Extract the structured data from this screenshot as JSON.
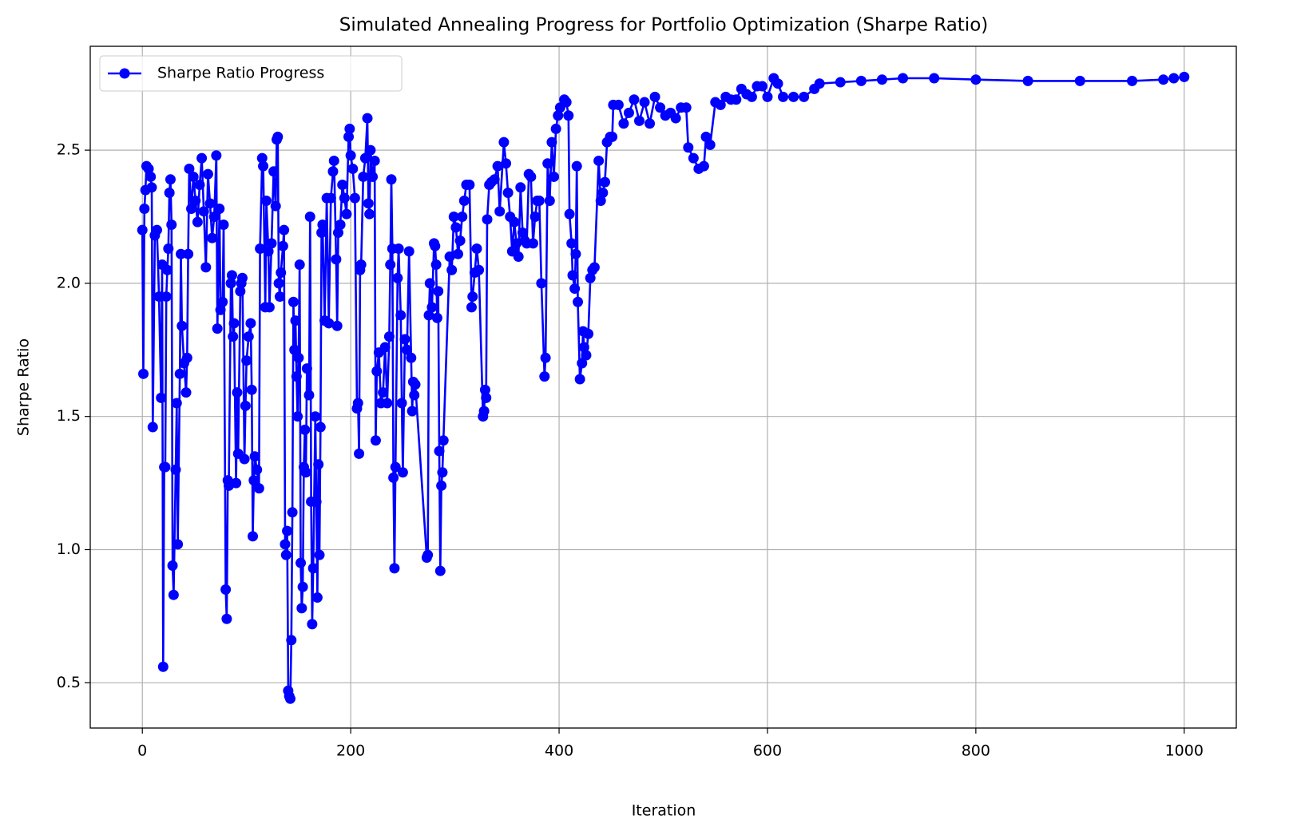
{
  "chart_data": {
    "type": "line",
    "title": "Simulated Annealing Progress for Portfolio Optimization (Sharpe Ratio)",
    "xlabel": "Iteration",
    "ylabel": "Sharpe Ratio",
    "series": [
      {
        "name": "Sharpe Ratio Progress",
        "color": "#0000ff",
        "x": [
          0,
          1,
          2,
          3,
          4,
          6,
          8,
          9,
          10,
          12,
          14,
          16,
          18,
          19,
          20,
          21,
          22,
          23,
          24,
          25,
          26,
          27,
          28,
          29,
          30,
          32,
          33,
          34,
          36,
          37,
          38,
          40,
          42,
          43,
          44,
          45,
          47,
          49,
          51,
          53,
          55,
          57,
          59,
          61,
          63,
          65,
          67,
          69,
          71,
          72,
          74,
          75,
          77,
          78,
          80,
          81,
          82,
          83,
          85,
          86,
          87,
          88,
          90,
          91,
          92,
          94,
          95,
          96,
          98,
          99,
          100,
          102,
          104,
          105,
          106,
          107,
          108,
          110,
          112,
          113,
          115,
          116,
          118,
          119,
          121,
          122,
          124,
          126,
          128,
          129,
          130,
          131,
          132,
          133,
          135,
          136,
          137,
          138,
          139,
          140,
          141,
          142,
          143,
          144,
          145,
          146,
          147,
          148,
          149,
          150,
          151,
          152,
          153,
          154,
          155,
          156,
          157,
          158,
          160,
          161,
          162,
          163,
          164,
          166,
          167,
          168,
          169,
          170,
          171,
          172,
          173,
          175,
          177,
          179,
          181,
          183,
          184,
          186,
          187,
          188,
          190,
          192,
          194,
          196,
          198,
          199,
          200,
          202,
          204,
          206,
          207,
          208,
          209,
          210,
          212,
          214,
          216,
          217,
          218,
          219,
          221,
          223,
          224,
          225,
          227,
          229,
          231,
          233,
          235,
          237,
          238,
          239,
          240,
          241,
          242,
          243,
          245,
          246,
          248,
          249,
          250,
          252,
          254,
          256,
          258,
          259,
          260,
          261,
          262,
          273,
          274,
          275,
          276,
          278,
          280,
          281,
          282,
          283,
          284,
          285,
          286,
          287,
          288,
          289,
          295,
          297,
          299,
          301,
          303,
          305,
          307,
          309,
          311,
          314,
          316,
          317,
          319,
          321,
          323,
          327,
          328,
          329,
          330,
          331,
          333,
          335,
          338,
          341,
          343,
          347,
          349,
          351,
          353,
          355,
          357,
          359,
          361,
          363,
          365,
          367,
          369,
          371,
          373,
          375,
          377,
          379,
          381,
          383,
          386,
          387,
          389,
          391,
          393,
          395,
          397,
          399,
          401,
          405,
          407,
          409,
          410,
          412,
          413,
          415,
          416,
          417,
          418,
          420,
          422,
          423,
          424,
          426,
          428,
          430,
          432,
          434,
          438,
          440,
          442,
          444,
          446,
          449,
          451,
          452,
          457,
          462,
          467,
          472,
          477,
          482,
          487,
          492,
          497,
          502,
          507,
          512,
          517,
          522,
          524,
          529,
          534,
          539,
          541,
          545,
          550,
          555,
          560,
          565,
          570,
          575,
          580,
          585,
          590,
          595,
          600,
          606,
          610,
          615,
          625,
          635,
          645,
          650,
          670,
          690,
          710,
          730,
          760,
          800,
          850,
          900,
          950,
          980,
          990,
          1000
        ],
        "values": [
          2.2,
          1.66,
          2.28,
          2.35,
          2.44,
          2.43,
          2.4,
          2.36,
          1.46,
          2.18,
          2.2,
          1.95,
          1.57,
          2.07,
          0.56,
          1.31,
          1.31,
          1.95,
          2.05,
          2.13,
          2.34,
          2.39,
          2.22,
          0.94,
          0.83,
          1.3,
          1.55,
          1.02,
          1.66,
          2.11,
          1.84,
          1.7,
          1.59,
          1.72,
          2.11,
          2.43,
          2.28,
          2.4,
          2.31,
          2.23,
          2.37,
          2.47,
          2.27,
          2.06,
          2.41,
          2.3,
          2.17,
          2.25,
          2.48,
          1.83,
          2.28,
          1.9,
          1.93,
          2.22,
          0.85,
          0.74,
          1.26,
          1.24,
          2.0,
          2.03,
          1.8,
          1.85,
          1.25,
          1.59,
          1.36,
          1.97,
          2.0,
          2.02,
          1.34,
          1.54,
          1.71,
          1.8,
          1.85,
          1.6,
          1.05,
          1.26,
          1.35,
          1.3,
          1.23,
          2.13,
          2.47,
          2.44,
          1.91,
          2.31,
          2.12,
          1.91,
          2.15,
          2.42,
          2.29,
          2.54,
          2.55,
          2.0,
          1.95,
          2.04,
          2.14,
          2.2,
          1.02,
          0.98,
          1.07,
          0.47,
          0.45,
          0.44,
          0.66,
          1.14,
          1.93,
          1.75,
          1.86,
          1.65,
          1.5,
          1.72,
          2.07,
          0.95,
          0.78,
          0.86,
          1.31,
          1.45,
          1.29,
          1.68,
          1.58,
          2.25,
          1.18,
          0.72,
          0.93,
          1.5,
          1.18,
          0.82,
          1.32,
          0.98,
          1.46,
          2.19,
          2.22,
          1.86,
          2.32,
          1.85,
          2.32,
          2.42,
          2.46,
          2.09,
          1.84,
          2.19,
          2.22,
          2.37,
          2.32,
          2.26,
          2.55,
          2.58,
          2.48,
          2.43,
          2.32,
          1.53,
          1.55,
          1.36,
          2.05,
          2.07,
          2.4,
          2.47,
          2.62,
          2.3,
          2.26,
          2.5,
          2.4,
          2.46,
          1.41,
          1.67,
          1.74,
          1.55,
          1.59,
          1.76,
          1.55,
          1.8,
          2.07,
          2.39,
          2.13,
          1.27,
          0.93,
          1.31,
          2.02,
          2.13,
          1.88,
          1.55,
          1.29,
          1.79,
          1.75,
          2.12,
          1.72,
          1.52,
          1.63,
          1.58,
          1.62,
          0.97,
          0.98,
          1.88,
          2.0,
          1.91,
          2.15,
          2.14,
          2.07,
          1.87,
          1.97,
          1.37,
          0.92,
          1.24,
          1.29,
          1.41,
          2.1,
          2.05,
          2.25,
          2.21,
          2.11,
          2.16,
          2.25,
          2.31,
          2.37,
          2.37,
          1.91,
          1.95,
          2.04,
          2.13,
          2.05,
          1.5,
          1.52,
          1.6,
          1.57,
          2.24,
          2.37,
          2.38,
          2.39,
          2.44,
          2.27,
          2.53,
          2.45,
          2.34,
          2.25,
          2.12,
          2.23,
          2.15,
          2.1,
          2.36,
          2.19,
          2.16,
          2.15,
          2.41,
          2.4,
          2.15,
          2.25,
          2.31,
          2.31,
          2.0,
          1.65,
          1.72,
          2.45,
          2.31,
          2.53,
          2.4,
          2.58,
          2.63,
          2.66,
          2.69,
          2.68,
          2.63,
          2.26,
          2.15,
          2.03,
          1.98,
          2.11,
          2.44,
          1.93,
          1.64,
          1.7,
          1.82,
          1.76,
          1.73,
          1.81,
          2.02,
          2.05,
          2.06,
          2.46,
          2.31,
          2.34,
          2.38,
          2.53,
          2.55,
          2.55,
          2.67,
          2.67,
          2.6,
          2.64,
          2.69,
          2.61,
          2.68,
          2.6,
          2.7,
          2.66,
          2.63,
          2.64,
          2.62,
          2.66,
          2.66,
          2.51,
          2.47,
          2.43,
          2.44,
          2.55,
          2.52,
          2.68,
          2.67,
          2.7,
          2.69,
          2.69,
          2.73,
          2.71,
          2.7,
          2.74,
          2.74,
          2.7,
          2.77,
          2.75,
          2.7,
          2.7,
          2.7,
          2.73,
          2.75,
          2.755,
          2.76,
          2.765,
          2.77,
          2.77,
          2.765,
          2.76,
          2.76,
          2.76,
          2.765,
          2.77,
          2.775
        ]
      }
    ],
    "xlim": [
      -50,
      1050
    ],
    "xticks": [
      0,
      200,
      400,
      600,
      800,
      1000
    ],
    "ylim": [
      0.33,
      2.89
    ],
    "yticks": [
      0.5,
      {
        "value": 1.0,
        "label": "1.0"
      },
      1.5,
      {
        "value": 2.0,
        "label": "2.0"
      },
      2.5
    ],
    "grid": true,
    "legend": "upper left"
  }
}
